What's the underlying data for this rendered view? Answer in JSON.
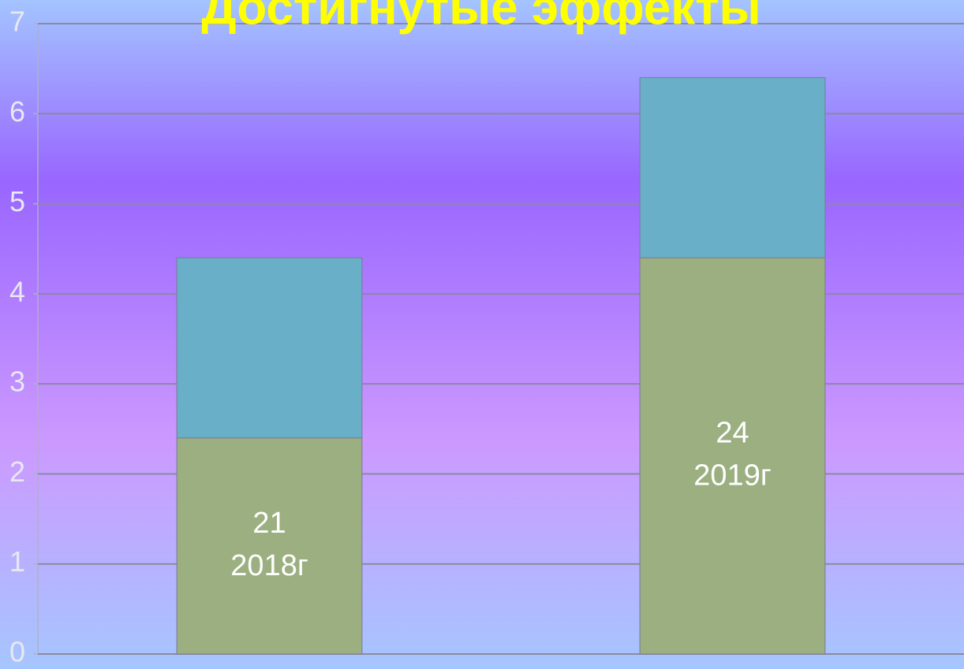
{
  "chart_data": {
    "type": "stacked_bar",
    "title": "Достигнутые эффекты",
    "categories": [
      null,
      null
    ],
    "series": [
      {
        "color": "#9caf80",
        "values": [
          2.4,
          4.4
        ]
      },
      {
        "color": "#6aafc8",
        "values": [
          2,
          2
        ]
      }
    ],
    "annotations": [
      [
        "21",
        "2018г"
      ],
      [
        "24",
        "2019г"
      ]
    ],
    "ylim": [
      0,
      7
    ],
    "yticks": [
      0,
      1,
      2,
      3,
      4,
      5,
      6,
      7
    ],
    "grid": true
  }
}
